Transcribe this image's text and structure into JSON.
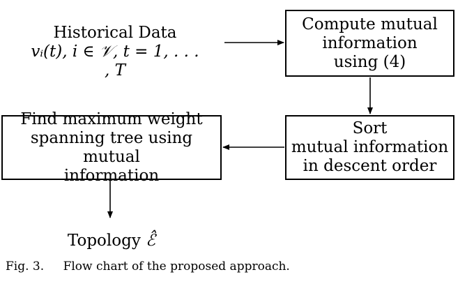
{
  "input": {
    "title": "Historical Data",
    "formula": "vᵢ(t), i ∈ 𝒱, t = 1, . . . , T"
  },
  "boxes": {
    "compute": [
      "Compute mutual",
      "information",
      "using (4)"
    ],
    "sort": [
      "Sort",
      "mutual information",
      "in descent order"
    ],
    "find": [
      "Find maximum weight",
      "spanning tree using mutual",
      "information"
    ]
  },
  "output": {
    "label": "Topology",
    "symbol": "ℰ̂"
  },
  "caption": {
    "label": "Fig. 3.",
    "text": "Flow chart of the proposed approach."
  }
}
